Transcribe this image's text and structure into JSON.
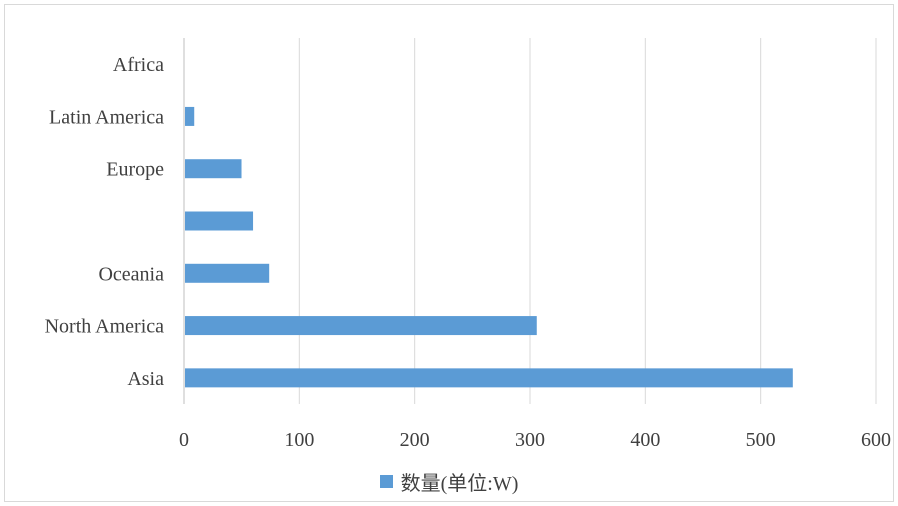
{
  "chart_data": {
    "type": "bar",
    "orientation": "horizontal",
    "categories": [
      "Asia",
      "North America",
      "Oceania",
      "",
      "Europe",
      "Latin America",
      "Africa"
    ],
    "series": [
      {
        "name": "数量(单位:W)",
        "color": "#5b9bd5",
        "values": [
          527,
          305,
          73,
          59,
          49,
          8,
          0
        ]
      }
    ],
    "xlim": [
      0,
      600
    ],
    "xticks": [
      "0",
      "100",
      "200",
      "300",
      "400",
      "500",
      "600"
    ],
    "grid": "vertical",
    "legend_position": "bottom"
  }
}
